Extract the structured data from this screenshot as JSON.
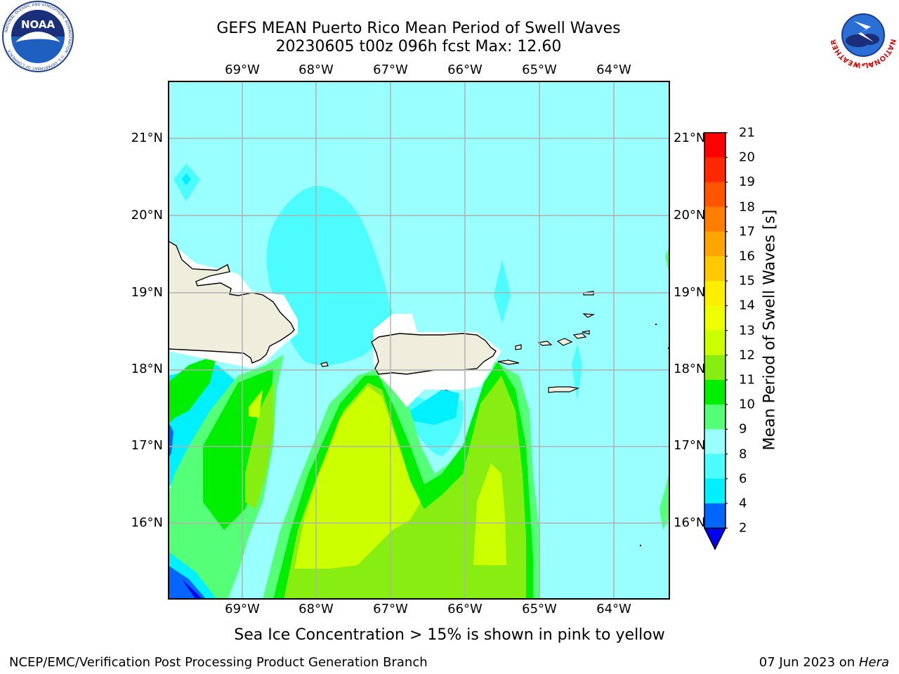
{
  "title": {
    "line1": "GEFS MEAN Puerto Rico Mean Period of Swell Waves",
    "line2": "20230605 t00z 096h fcst   Max: 12.60"
  },
  "map": {
    "lon_ticks": [
      "69°W",
      "68°W",
      "67°W",
      "66°W",
      "65°W",
      "64°W"
    ],
    "lat_ticks": [
      "21°N",
      "20°N",
      "19°N",
      "18°N",
      "17°N",
      "16°N"
    ],
    "colors": {
      "sea_light": "#99ffff",
      "sea_mid": "#4cfcff",
      "sea_cyan": "#00f0ff",
      "blue": "#0066ff",
      "dark_blue": "#0000ee",
      "light_green": "#55ff77",
      "green": "#00ee00",
      "yellow_green": "#ccff00",
      "land": "#efeddc",
      "grid": "#b0b0b0"
    }
  },
  "colorbar": {
    "label": "Mean Period of Swell Waves [s]",
    "ticks": [
      "21",
      "20",
      "19",
      "18",
      "17",
      "16",
      "15",
      "14",
      "13",
      "12",
      "11",
      "10",
      "9",
      "8",
      "6",
      "4",
      "2"
    ],
    "colors": [
      "#ff0000",
      "#ff2800",
      "#ff5500",
      "#ff7d00",
      "#ffa500",
      "#ffc800",
      "#ffee00",
      "#eeff00",
      "#ccff00",
      "#88ee11",
      "#00ee00",
      "#55ff77",
      "#99ffff",
      "#4cfcff",
      "#00f0ff",
      "#0066ff",
      "#0000ee"
    ],
    "extend_color": "#0000ee"
  },
  "note": "Sea Ice Concentration > 15% is shown in pink to yellow",
  "footer": {
    "left": "NCEP/EMC/Verification Post Processing Product Generation Branch",
    "date": "07 Jun 2023 on ",
    "host": "Hera"
  },
  "logos": {
    "noaa_text": "NOAA",
    "noaa_ring": "NATIONAL OCEANIC AND ATMOSPHERIC ADMINISTRATION · U.S. DEPARTMENT OF COMMERCE",
    "nws_ring": "NATIONAL WEATHER SERVICE"
  }
}
